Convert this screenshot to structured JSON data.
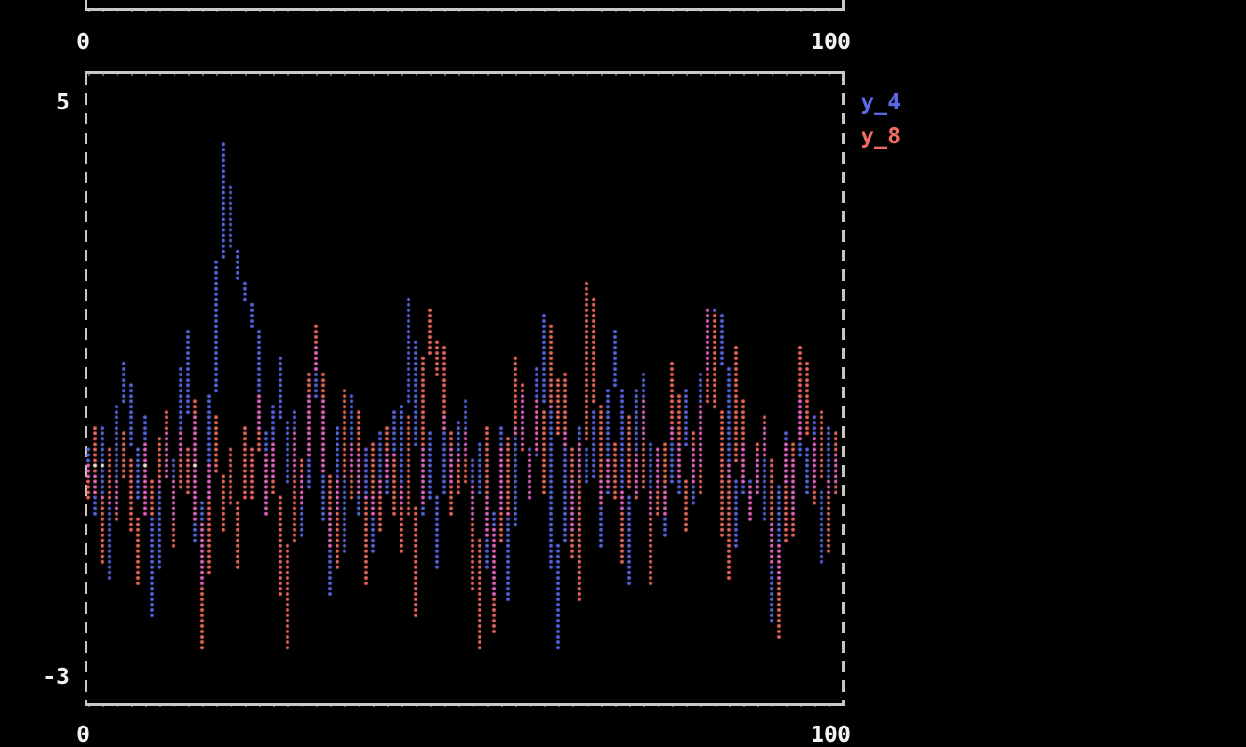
{
  "page": {
    "background": "#000000"
  },
  "top_plot_fragment": {
    "x_tick_left": "0",
    "x_tick_right": "100"
  },
  "main_plot": {
    "y_tick_top": "5",
    "y_tick_bottom": "-3",
    "x_tick_left": "0",
    "x_tick_right": "100"
  },
  "chart_data": {
    "type": "line",
    "renderer": "terminal-dot-canvas",
    "title": "",
    "xlabel": "",
    "ylabel": "",
    "xlim": [
      0,
      100
    ],
    "ylim": [
      -3,
      5
    ],
    "x_ticks": [
      0,
      100
    ],
    "y_ticks": [
      5,
      -3
    ],
    "grid": false,
    "legend_position": "outside-right-top",
    "x_start": 0,
    "x_step": 1,
    "series": [
      {
        "name": "y_4",
        "color": "#5b68e6",
        "values": [
          0.2,
          -0.6,
          0.5,
          -1.4,
          0.3,
          1.3,
          0.8,
          -0.4,
          0.6,
          -1.9,
          0.4,
          -0.7,
          0.9,
          1.7,
          -0.5,
          -1.5,
          0.7,
          1.2,
          4.1,
          3.0,
          2.5,
          2.2,
          2.0,
          1.5,
          -0.6,
          0.3,
          1.4,
          -0.2,
          0.7,
          -0.9,
          1.5,
          0.2,
          -1.6,
          0.5,
          -1.1,
          0.9,
          -0.6,
          0.2,
          -1.1,
          0.4,
          -0.3,
          0.7,
          -0.5,
          2.1,
          1.1,
          -0.6,
          0.4,
          -1.3,
          0.6,
          -0.2,
          0.8,
          -0.7,
          0.3,
          -1.0,
          -1.6,
          0.5,
          -1.7,
          0.2,
          0.9,
          -0.4,
          0.6,
          1.9,
          -0.3,
          -2.3,
          0.4,
          -0.8,
          0.5,
          -0.2,
          0.7,
          -1.0,
          1.7,
          0.3,
          -1.5,
          0.8,
          1.2,
          -0.6,
          0.2,
          -0.9,
          0.5,
          -0.3,
          1.0,
          -0.5,
          0.4,
          2.0,
          2.0,
          1.9,
          0.6,
          -1.0,
          0.3,
          -0.7,
          0.5,
          -2.0,
          -0.9,
          0.4,
          -0.6,
          0.8,
          -0.3,
          0.6,
          -1.2,
          0.5,
          -0.2
        ]
      },
      {
        "name": "y_8",
        "color": "#f26b60",
        "values": [
          -0.4,
          0.5,
          -1.2,
          0.2,
          -0.7,
          0.4,
          -0.2,
          -1.5,
          0.3,
          -0.6,
          0.7,
          -1.0,
          0.4,
          -0.3,
          0.8,
          -2.3,
          -0.5,
          0.6,
          -0.8,
          0.2,
          -1.3,
          0.5,
          -0.4,
          0.9,
          -0.6,
          0.3,
          -1.0,
          -2.3,
          0.4,
          -0.5,
          1.8,
          0.6,
          -0.9,
          -1.3,
          1.0,
          -0.4,
          0.7,
          -1.5,
          0.3,
          -0.8,
          0.5,
          -0.2,
          -1.1,
          0.6,
          -1.9,
          0.9,
          2.0,
          1.2,
          1.5,
          -0.6,
          0.4,
          -0.9,
          -2.3,
          0.5,
          -2.1,
          0.2,
          -0.6,
          1.4,
          0.7,
          -0.4,
          0.8,
          -0.3,
          1.8,
          0.4,
          1.2,
          -0.7,
          -1.7,
          2.3,
          2.0,
          -0.5,
          0.3,
          -1.2,
          0.6,
          -0.4,
          0.8,
          -1.5,
          0.2,
          -0.6,
          1.3,
          0.5,
          -0.8,
          0.4,
          -0.3,
          2.0,
          1.9,
          -0.5,
          -1.4,
          1.5,
          0.2,
          -0.7,
          0.6,
          -0.4,
          -2.2,
          0.3,
          -0.9,
          1.5,
          1.2,
          -0.5,
          0.7,
          -1.1,
          0.4
        ]
      }
    ],
    "overlap_color": "#ee69c8",
    "zero_line_white_color": "#f0ead8",
    "zero_line_white_columns": [
      1,
      2,
      8,
      9,
      15,
      16
    ],
    "dot_grid": {
      "cols": 106,
      "rows": 118
    }
  }
}
